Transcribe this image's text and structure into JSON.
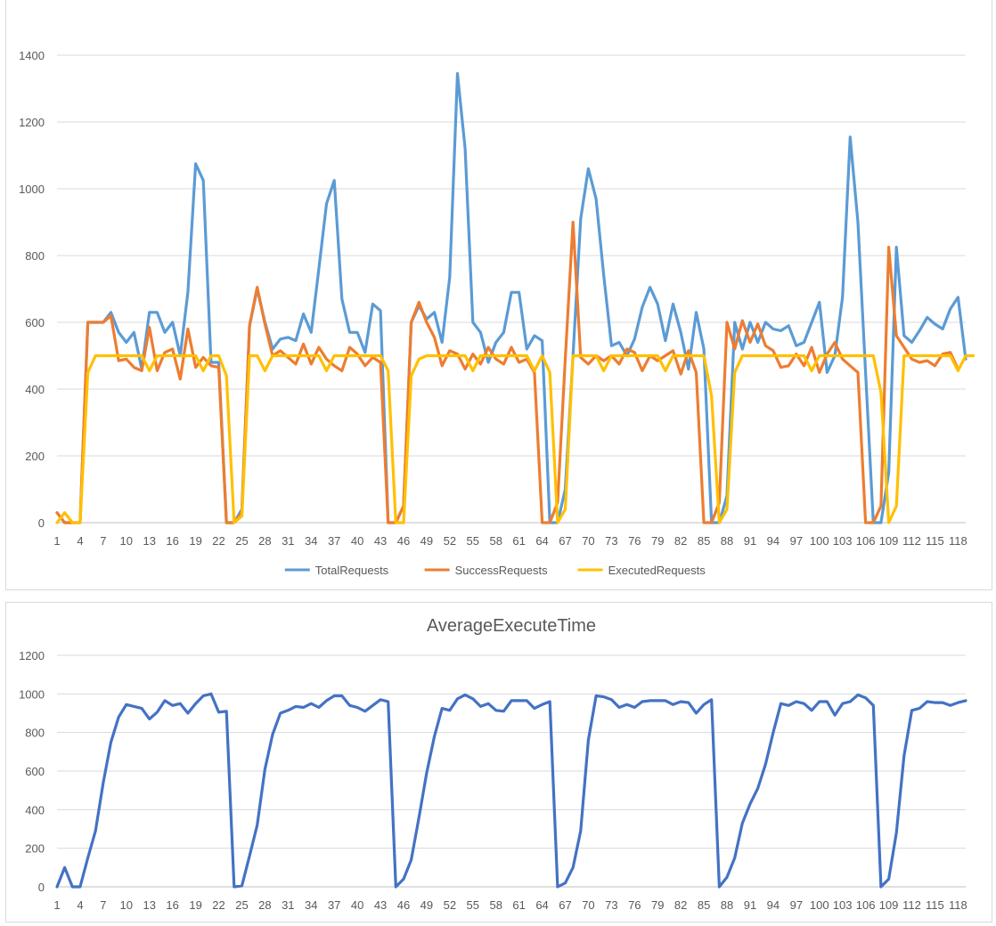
{
  "chart_data": [
    {
      "type": "line",
      "title": "",
      "xlabel": "",
      "ylabel": "",
      "ylim": [
        0,
        1400
      ],
      "yticks": [
        0,
        200,
        400,
        600,
        800,
        1000,
        1200,
        1400
      ],
      "xlim": [
        1,
        119
      ],
      "xtick_labels": [
        "1",
        "4",
        "7",
        "10",
        "13",
        "16",
        "19",
        "22",
        "25",
        "28",
        "31",
        "34",
        "37",
        "40",
        "43",
        "46",
        "49",
        "52",
        "55",
        "58",
        "61",
        "64",
        "67",
        "70",
        "73",
        "76",
        "79",
        "82",
        "85",
        "88",
        "91",
        "94",
        "97",
        "100",
        "103",
        "106",
        "109",
        "112",
        "115",
        "118"
      ],
      "grid": "horizontal",
      "legend": "bottom",
      "colors": {
        "TotalRequests": "#5b9bd5",
        "SuccessRequests": "#ed7d31",
        "ExecutedRequests": "#ffc000"
      },
      "series": [
        {
          "name": "TotalRequests",
          "color": "#5b9bd5",
          "values": [
            30,
            0,
            0,
            0,
            600,
            600,
            600,
            630,
            570,
            540,
            570,
            460,
            630,
            630,
            570,
            600,
            500,
            690,
            1075,
            1025,
            480,
            480,
            0,
            0,
            40,
            590,
            700,
            600,
            520,
            550,
            555,
            545,
            625,
            570,
            760,
            955,
            1025,
            670,
            570,
            570,
            510,
            655,
            635,
            0,
            0,
            50,
            600,
            650,
            610,
            630,
            540,
            735,
            1345,
            1120,
            600,
            570,
            480,
            540,
            570,
            690,
            690,
            520,
            560,
            545,
            0,
            0,
            100,
            500,
            910,
            1060,
            970,
            740,
            530,
            540,
            500,
            550,
            645,
            705,
            655,
            545,
            655,
            570,
            460,
            630,
            520,
            0,
            0,
            80,
            600,
            520,
            600,
            540,
            600,
            580,
            575,
            590,
            530,
            540,
            600,
            660,
            450,
            500,
            675,
            1155,
            900,
            450,
            0,
            0,
            150,
            825,
            560,
            540,
            575,
            615,
            595,
            580,
            640,
            675,
            490
          ]
        },
        {
          "name": "SuccessRequests",
          "color": "#ed7d31",
          "values": [
            30,
            0,
            0,
            0,
            600,
            600,
            600,
            620,
            485,
            490,
            465,
            455,
            585,
            455,
            510,
            520,
            430,
            580,
            465,
            495,
            470,
            465,
            0,
            0,
            30,
            590,
            705,
            595,
            500,
            515,
            495,
            475,
            535,
            475,
            525,
            490,
            470,
            455,
            525,
            505,
            470,
            495,
            480,
            0,
            0,
            50,
            600,
            660,
            600,
            555,
            470,
            515,
            505,
            460,
            505,
            475,
            525,
            490,
            475,
            525,
            480,
            490,
            450,
            0,
            0,
            60,
            490,
            900,
            495,
            475,
            500,
            485,
            500,
            475,
            520,
            510,
            455,
            500,
            485,
            500,
            515,
            445,
            515,
            450,
            0,
            0,
            60,
            600,
            520,
            605,
            540,
            595,
            530,
            515,
            465,
            470,
            505,
            470,
            525,
            450,
            505,
            540,
            490,
            470,
            450,
            0,
            0,
            50,
            825,
            560,
            525,
            490,
            480,
            485,
            470,
            505,
            510,
            460
          ]
        },
        {
          "name": "ExecutedRequests",
          "color": "#ffc000",
          "values": [
            0,
            30,
            0,
            0,
            450,
            500,
            500,
            500,
            500,
            500,
            500,
            500,
            455,
            500,
            500,
            500,
            500,
            500,
            500,
            455,
            500,
            500,
            440,
            0,
            20,
            500,
            500,
            455,
            500,
            500,
            500,
            500,
            500,
            500,
            500,
            455,
            500,
            500,
            500,
            500,
            500,
            500,
            500,
            455,
            0,
            0,
            440,
            490,
            500,
            500,
            500,
            500,
            500,
            500,
            455,
            500,
            500,
            500,
            500,
            500,
            500,
            500,
            455,
            500,
            450,
            0,
            40,
            500,
            500,
            500,
            500,
            455,
            500,
            500,
            500,
            500,
            500,
            500,
            500,
            455,
            500,
            500,
            500,
            500,
            500,
            380,
            0,
            40,
            450,
            500,
            500,
            500,
            500,
            500,
            500,
            500,
            500,
            500,
            455,
            500,
            500,
            500,
            500,
            500,
            500,
            500,
            500,
            390,
            0,
            50,
            500,
            500,
            500,
            500,
            500,
            500,
            500,
            455,
            500,
            500
          ]
        }
      ]
    },
    {
      "type": "line",
      "title": "AverageExecuteTime",
      "xlabel": "",
      "ylabel": "",
      "ylim": [
        0,
        1200
      ],
      "yticks": [
        0,
        200,
        400,
        600,
        800,
        1000,
        1200
      ],
      "xlim": [
        1,
        119
      ],
      "xtick_labels": [
        "1",
        "4",
        "7",
        "10",
        "13",
        "16",
        "19",
        "22",
        "25",
        "28",
        "31",
        "34",
        "37",
        "40",
        "43",
        "46",
        "49",
        "52",
        "55",
        "58",
        "61",
        "64",
        "67",
        "70",
        "73",
        "76",
        "79",
        "82",
        "85",
        "88",
        "91",
        "94",
        "97",
        "100",
        "103",
        "106",
        "109",
        "112",
        "115",
        "118"
      ],
      "grid": "horizontal",
      "legend": "none",
      "series": [
        {
          "color": "#4472c4",
          "values": [
            0,
            100,
            0,
            0,
            150,
            290,
            540,
            750,
            880,
            945,
            935,
            925,
            870,
            905,
            965,
            940,
            950,
            900,
            950,
            990,
            1000,
            905,
            910,
            0,
            5,
            160,
            320,
            610,
            790,
            900,
            915,
            935,
            930,
            950,
            930,
            965,
            990,
            990,
            940,
            930,
            910,
            940,
            970,
            960,
            0,
            40,
            140,
            360,
            590,
            780,
            925,
            915,
            975,
            995,
            975,
            935,
            950,
            915,
            910,
            965,
            965,
            965,
            925,
            945,
            960,
            0,
            20,
            100,
            290,
            760,
            990,
            985,
            970,
            930,
            945,
            930,
            960,
            965,
            965,
            965,
            945,
            960,
            955,
            900,
            945,
            970,
            0,
            50,
            150,
            330,
            430,
            510,
            635,
            800,
            950,
            940,
            960,
            950,
            915,
            960,
            960,
            890,
            950,
            960,
            995,
            980,
            940,
            0,
            40,
            280,
            680,
            915,
            925,
            960,
            955,
            955,
            940,
            955,
            965
          ]
        }
      ]
    }
  ]
}
